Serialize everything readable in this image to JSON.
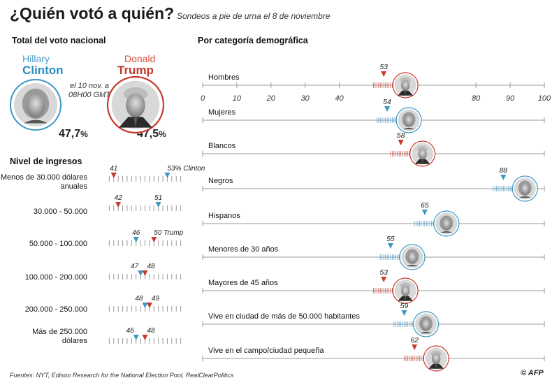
{
  "title": "¿Quién votó a quién?",
  "subtitle": "Sondeos a pie de urna el 8 de noviembre",
  "national": {
    "heading": "Total del voto nacional",
    "clinton_first": "Hillary",
    "clinton_last": "Clinton",
    "trump_first": "Donald",
    "trump_last": "Trump",
    "date_note": "el 10 nov. a 08H00 GMT",
    "clinton_pct": "47,7",
    "trump_pct": "47,5",
    "pct_sign": "%"
  },
  "income_heading": "Nivel de ingresos",
  "demo_heading": "Por categoría demográfica",
  "colors": {
    "clinton": "#3d97c4",
    "trump": "#c73a2c",
    "axis": "#999999"
  },
  "chart_data": [
    {
      "type": "dot",
      "title": "Nivel de ingresos",
      "axis_range": [
        39,
        57
      ],
      "categories": [
        "Menos de 30.000 dólares anuales",
        "30.000 - 50.000",
        "50.000 - 100.000",
        "100.000 - 200.000",
        "200.000 - 250.000",
        "Más de 250.000 dólares"
      ],
      "series": [
        {
          "name": "Clinton",
          "values": [
            53,
            51,
            46,
            47,
            48,
            46
          ]
        },
        {
          "name": "Trump",
          "values": [
            41,
            42,
            50,
            48,
            49,
            48
          ]
        }
      ],
      "annotations": [
        "53% Clinton",
        "50 Trump"
      ]
    },
    {
      "type": "dot",
      "title": "Por categoría demográfica",
      "axis_range": [
        0,
        100
      ],
      "ticks": [
        "0",
        "10",
        "20",
        "30",
        "40",
        "80",
        "90",
        "100"
      ],
      "categories": [
        "Hombres",
        "Mujeres",
        "Blancos",
        "Negros",
        "Hispanos",
        "Menores de 30 años",
        "Mayores de 45 años",
        "Vive en ciudad de más de 50.000 habitantes",
        "Vive en el campo/ciudad pequeña"
      ],
      "winner": [
        "Trump",
        "Clinton",
        "Trump",
        "Clinton",
        "Clinton",
        "Clinton",
        "Trump",
        "Clinton",
        "Trump"
      ],
      "values": [
        53,
        54,
        58,
        88,
        65,
        55,
        53,
        59,
        62
      ]
    }
  ],
  "source": "Fuentes: NYT, Edison Research for the National Election Pool, RealClearPolitics",
  "logo": "© AFP"
}
